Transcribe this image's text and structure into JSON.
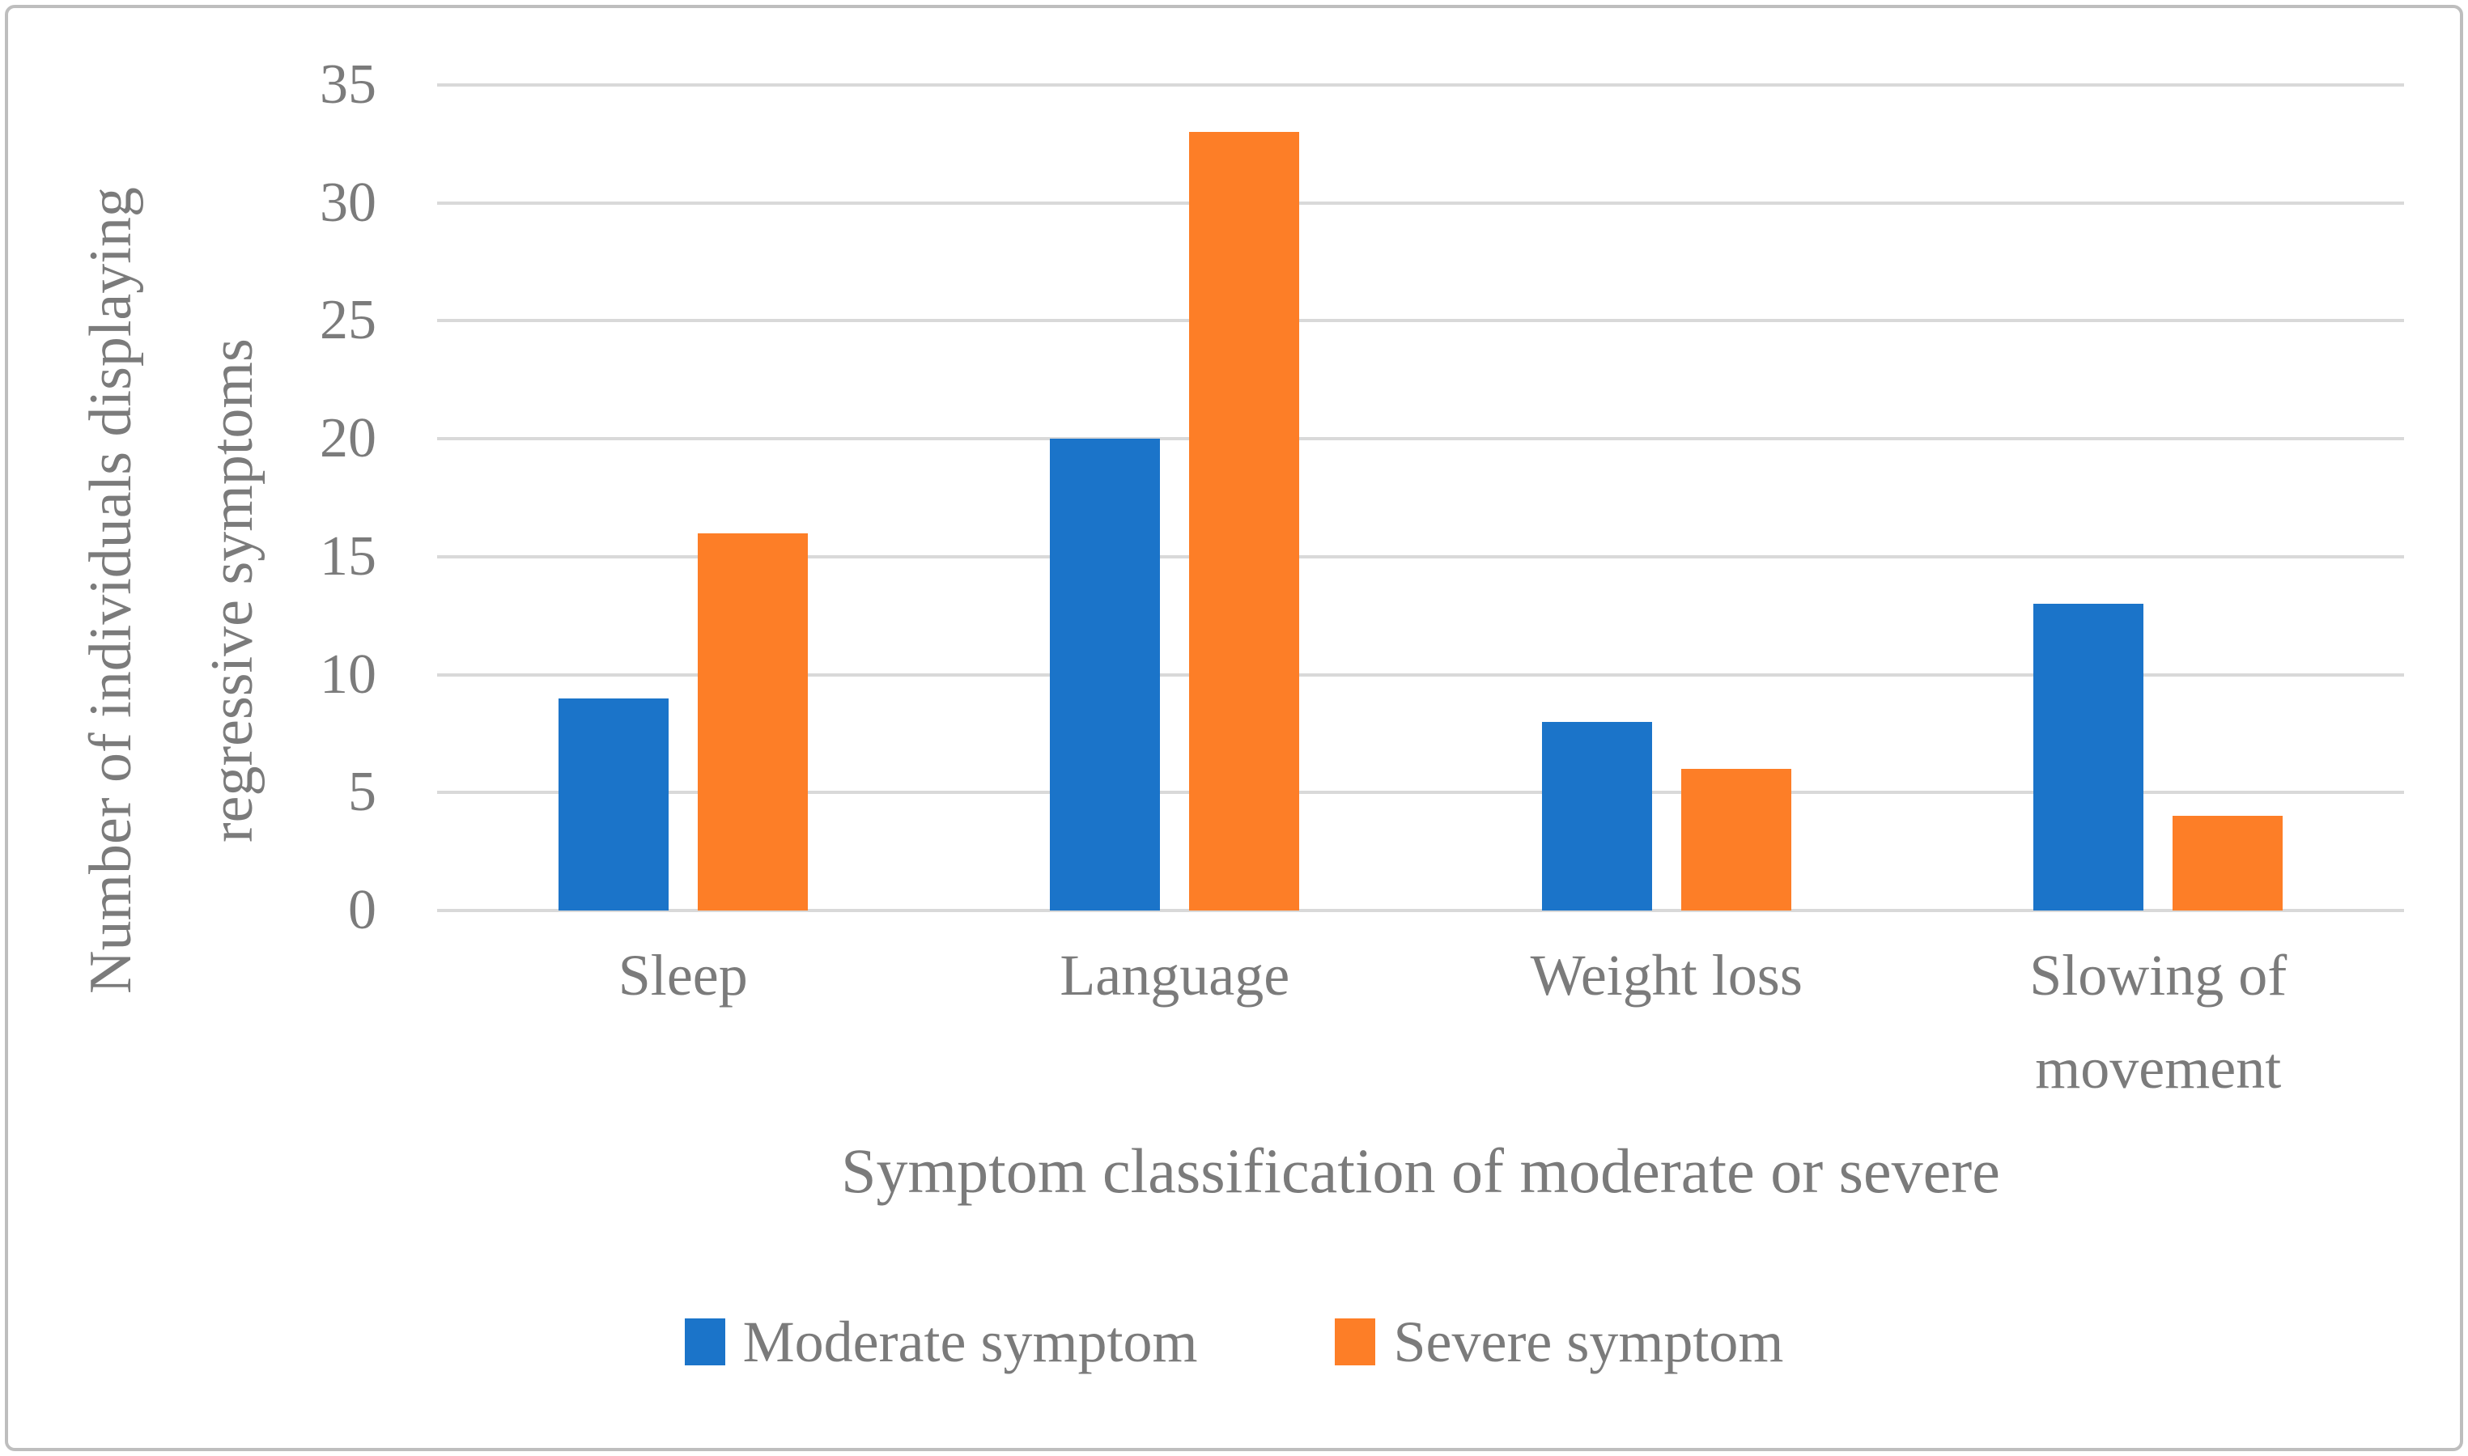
{
  "figure": {
    "background_color": "#ffffff",
    "border_color": "#bebebe",
    "text_color": "#7b7b7b",
    "gridline_color": "#d9d9d9"
  },
  "chart_data": {
    "type": "bar",
    "title": "",
    "xlabel": "Symptom classification of moderate or severe",
    "ylabel": "Number of individuals displaying regressive symptoms",
    "categories": [
      "Sleep",
      "Language",
      "Weight loss",
      "Slowing of movement"
    ],
    "series": [
      {
        "name": "Moderate symptom",
        "color": "#1b74c9",
        "values": [
          9,
          20,
          8,
          13
        ]
      },
      {
        "name": "Severe symptom",
        "color": "#fd7e27",
        "values": [
          16,
          33,
          6,
          4
        ]
      }
    ],
    "ylim": [
      0,
      35
    ],
    "yticks": [
      0,
      5,
      10,
      15,
      20,
      25,
      30,
      35
    ],
    "grid": true,
    "legend_position": "bottom"
  }
}
